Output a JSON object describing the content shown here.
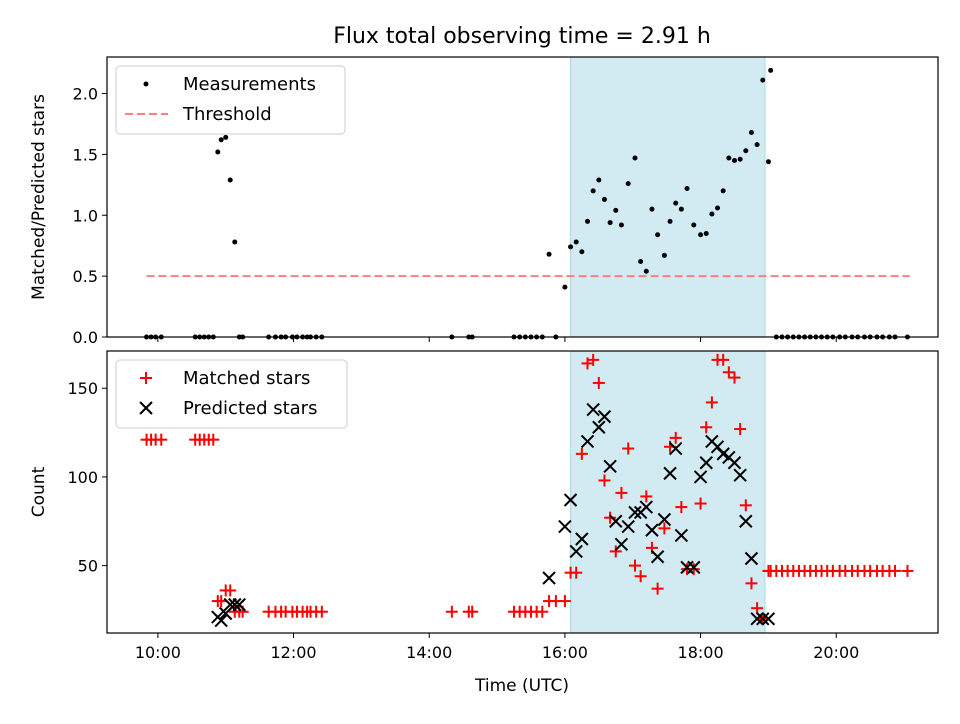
{
  "title": "Flux total observing time = 2.91 h",
  "xlabel": "Time (UTC)",
  "xticks": [
    "10:00",
    "12:00",
    "14:00",
    "16:00",
    "18:00",
    "20:00"
  ],
  "highlight_color": "#add8e6",
  "chart_data": [
    {
      "type": "scatter",
      "ylabel": "Matched/Predicted stars",
      "x_range_hours": [
        9.25,
        21.5
      ],
      "ylim": [
        0,
        2.3
      ],
      "yticks": [
        "0.0",
        "0.5",
        "1.0",
        "1.5",
        "2.0"
      ],
      "highlight_span": [
        "16:05",
        "18:57"
      ],
      "threshold": 0.5,
      "threshold_span": [
        "09:50",
        "21:05"
      ],
      "legend": {
        "location": "upper left",
        "entries": [
          "Measurements",
          "Threshold"
        ]
      },
      "series": [
        {
          "name": "Measurements",
          "color": "#000000",
          "x": [
            "09:50",
            "09:54",
            "09:58",
            "10:03",
            "10:33",
            "10:37",
            "10:41",
            "10:45",
            "10:49",
            "10:53",
            "10:56",
            "11:00",
            "11:04",
            "11:08",
            "11:12",
            "11:15",
            "11:38",
            "11:44",
            "11:49",
            "11:53",
            "11:59",
            "12:03",
            "12:08",
            "12:12",
            "12:15",
            "12:20",
            "12:25",
            "14:20",
            "14:35",
            "14:38",
            "15:15",
            "15:20",
            "15:25",
            "15:30",
            "15:35",
            "15:40",
            "15:46",
            "15:52",
            "16:00",
            "16:05",
            "16:10",
            "16:15",
            "16:20",
            "16:25",
            "16:30",
            "16:35",
            "16:40",
            "16:45",
            "16:50",
            "16:56",
            "17:02",
            "17:07",
            "17:12",
            "17:17",
            "17:22",
            "17:28",
            "17:33",
            "17:38",
            "17:43",
            "17:48",
            "17:54",
            "18:00",
            "18:05",
            "18:10",
            "18:15",
            "18:20",
            "18:25",
            "18:30",
            "18:35",
            "18:40",
            "18:45",
            "18:50",
            "18:55",
            "19:00",
            "19:02",
            "19:07",
            "19:12",
            "19:17",
            "19:22",
            "19:27",
            "19:32",
            "19:37",
            "19:42",
            "19:47",
            "19:52",
            "19:57",
            "20:03",
            "20:08",
            "20:14",
            "20:19",
            "20:25",
            "20:30",
            "20:36",
            "20:41",
            "20:47",
            "20:52",
            "21:03"
          ],
          "y": [
            0,
            0,
            0,
            0,
            0,
            0,
            0,
            0,
            0,
            1.52,
            1.62,
            1.64,
            1.29,
            0.78,
            0,
            0,
            0,
            0,
            0,
            0,
            0,
            0,
            0,
            0,
            0,
            0,
            0,
            0,
            0,
            0,
            0,
            0,
            0,
            0,
            0,
            0,
            0.68,
            0,
            0.41,
            0.74,
            0.78,
            0.7,
            0.95,
            1.2,
            1.29,
            1.13,
            0.94,
            1.04,
            0.92,
            1.26,
            1.47,
            0.62,
            0.54,
            1.05,
            0.84,
            0.67,
            0.95,
            1.1,
            1.05,
            1.22,
            0.92,
            0.84,
            0.85,
            1.01,
            1.06,
            1.2,
            1.47,
            1.45,
            1.46,
            1.53,
            1.68,
            1.58,
            2.11,
            1.44,
            2.19,
            0,
            0,
            0,
            0,
            0,
            0,
            0,
            0,
            0,
            0,
            0,
            0,
            0,
            0,
            0,
            0,
            0,
            0,
            0,
            0,
            0,
            0
          ]
        }
      ]
    },
    {
      "type": "scatter",
      "ylabel": "Count",
      "x_range_hours": [
        9.25,
        21.5
      ],
      "ylim": [
        12,
        171
      ],
      "yticks": [
        "50",
        "100",
        "150"
      ],
      "highlight_span": [
        "16:05",
        "18:57"
      ],
      "legend": {
        "location": "upper left",
        "entries": [
          "Matched stars",
          "Predicted stars"
        ]
      },
      "series": [
        {
          "name": "Matched stars",
          "marker": "+",
          "color": "#ff0000",
          "x": [
            "09:50",
            "09:54",
            "09:58",
            "10:03",
            "10:33",
            "10:37",
            "10:41",
            "10:45",
            "10:49",
            "10:53",
            "10:56",
            "11:00",
            "11:04",
            "11:08",
            "11:12",
            "11:15",
            "11:38",
            "11:44",
            "11:49",
            "11:53",
            "11:59",
            "12:03",
            "12:08",
            "12:12",
            "12:15",
            "12:20",
            "12:25",
            "14:20",
            "14:35",
            "14:38",
            "15:15",
            "15:20",
            "15:25",
            "15:30",
            "15:35",
            "15:40",
            "15:46",
            "15:52",
            "16:00",
            "16:05",
            "16:10",
            "16:15",
            "16:20",
            "16:25",
            "16:30",
            "16:35",
            "16:40",
            "16:45",
            "16:50",
            "16:56",
            "17:02",
            "17:07",
            "17:12",
            "17:17",
            "17:22",
            "17:28",
            "17:33",
            "17:38",
            "17:43",
            "17:48",
            "17:54",
            "18:00",
            "18:05",
            "18:10",
            "18:15",
            "18:20",
            "18:25",
            "18:30",
            "18:35",
            "18:40",
            "18:45",
            "18:50",
            "18:55",
            "19:00",
            "19:02",
            "19:07",
            "19:12",
            "19:17",
            "19:22",
            "19:27",
            "19:32",
            "19:37",
            "19:42",
            "19:47",
            "19:52",
            "19:57",
            "20:03",
            "20:08",
            "20:14",
            "20:19",
            "20:25",
            "20:30",
            "20:36",
            "20:41",
            "20:47",
            "20:52",
            "21:03"
          ],
          "y": [
            121,
            121,
            121,
            121,
            121,
            121,
            121,
            121,
            121,
            30,
            30,
            36,
            36,
            24,
            24,
            24,
            24,
            24,
            24,
            24,
            24,
            24,
            24,
            24,
            24,
            24,
            24,
            24,
            24,
            24,
            24,
            24,
            24,
            24,
            24,
            24,
            30,
            30,
            30,
            46,
            46,
            113,
            164,
            166,
            153,
            98,
            77,
            58,
            91,
            116,
            50,
            44,
            89,
            60,
            37,
            71,
            117,
            122,
            83,
            48,
            48,
            85,
            128,
            142,
            166,
            166,
            159,
            156,
            127,
            84,
            40,
            26,
            20,
            47,
            47,
            47,
            47,
            47,
            47,
            47,
            47,
            47,
            47,
            47,
            47,
            47,
            47,
            47,
            47,
            47,
            47,
            47,
            47,
            47,
            47,
            47,
            47
          ]
        },
        {
          "name": "Predicted stars",
          "marker": "x",
          "color": "#000000",
          "x": [
            "10:53",
            "10:56",
            "11:00",
            "11:04",
            "11:08",
            "11:12",
            "16:00",
            "16:05",
            "16:10",
            "16:15",
            "16:20",
            "16:25",
            "16:30",
            "16:35",
            "16:40",
            "16:45",
            "16:50",
            "16:56",
            "17:02",
            "17:07",
            "17:12",
            "17:17",
            "17:22",
            "17:28",
            "17:33",
            "17:38",
            "17:43",
            "17:48",
            "17:54",
            "18:00",
            "18:05",
            "18:10",
            "18:15",
            "18:20",
            "18:25",
            "18:30",
            "18:35",
            "18:40",
            "18:45",
            "18:50",
            "18:55",
            "19:00",
            "15:46"
          ],
          "y": [
            21,
            19,
            23,
            28,
            28,
            28,
            72,
            87,
            58,
            65,
            120,
            138,
            128,
            134,
            106,
            75,
            62,
            72,
            80,
            80,
            83,
            70,
            55,
            76,
            102,
            116,
            67,
            49,
            49,
            100,
            108,
            120,
            117,
            113,
            111,
            108,
            101,
            75,
            54,
            20,
            20,
            20,
            43
          ]
        }
      ]
    }
  ]
}
